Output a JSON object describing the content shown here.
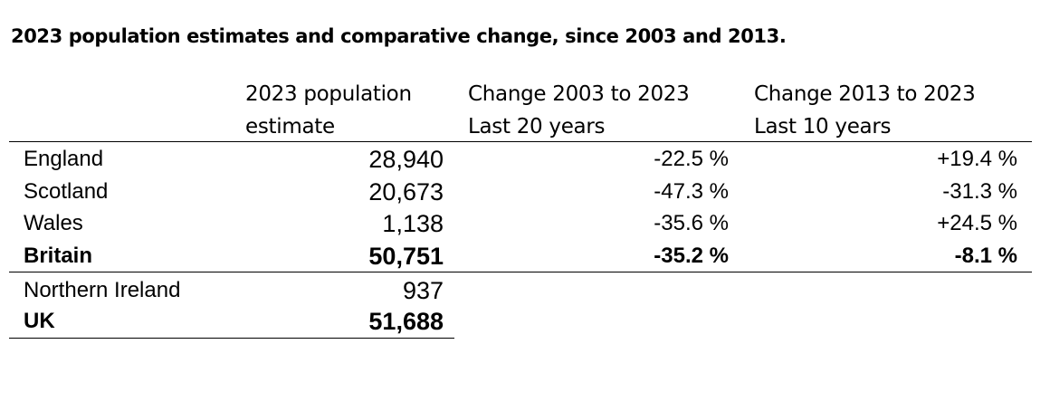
{
  "title": "2023 population estimates and comparative change, since 2003 and 2013.",
  "headers": {
    "pop_line1": "2023 population",
    "pop_line2": "estimate",
    "c1_line1": "Change 2003 to 2023",
    "c1_line2": "Last 20 years",
    "c2_line1": "Change 2013 to 2023",
    "c2_line2": "Last 10 years"
  },
  "rows": [
    {
      "label": "England",
      "pop": "28,940",
      "c1": "-22.5 %",
      "c2": "+19.4 %"
    },
    {
      "label": "Scotland",
      "pop": "20,673",
      "c1": "-47.3 %",
      "c2": "-31.3 %"
    },
    {
      "label": "Wales",
      "pop": "1,138",
      "c1": "-35.6 %",
      "c2": "+24.5 %"
    },
    {
      "label": "Britain",
      "pop": "50,751",
      "c1": "-35.2 %",
      "c2": "-8.1 %"
    },
    {
      "label": "Northern Ireland",
      "pop": "937"
    },
    {
      "label": "UK",
      "pop": "51,688"
    }
  ]
}
